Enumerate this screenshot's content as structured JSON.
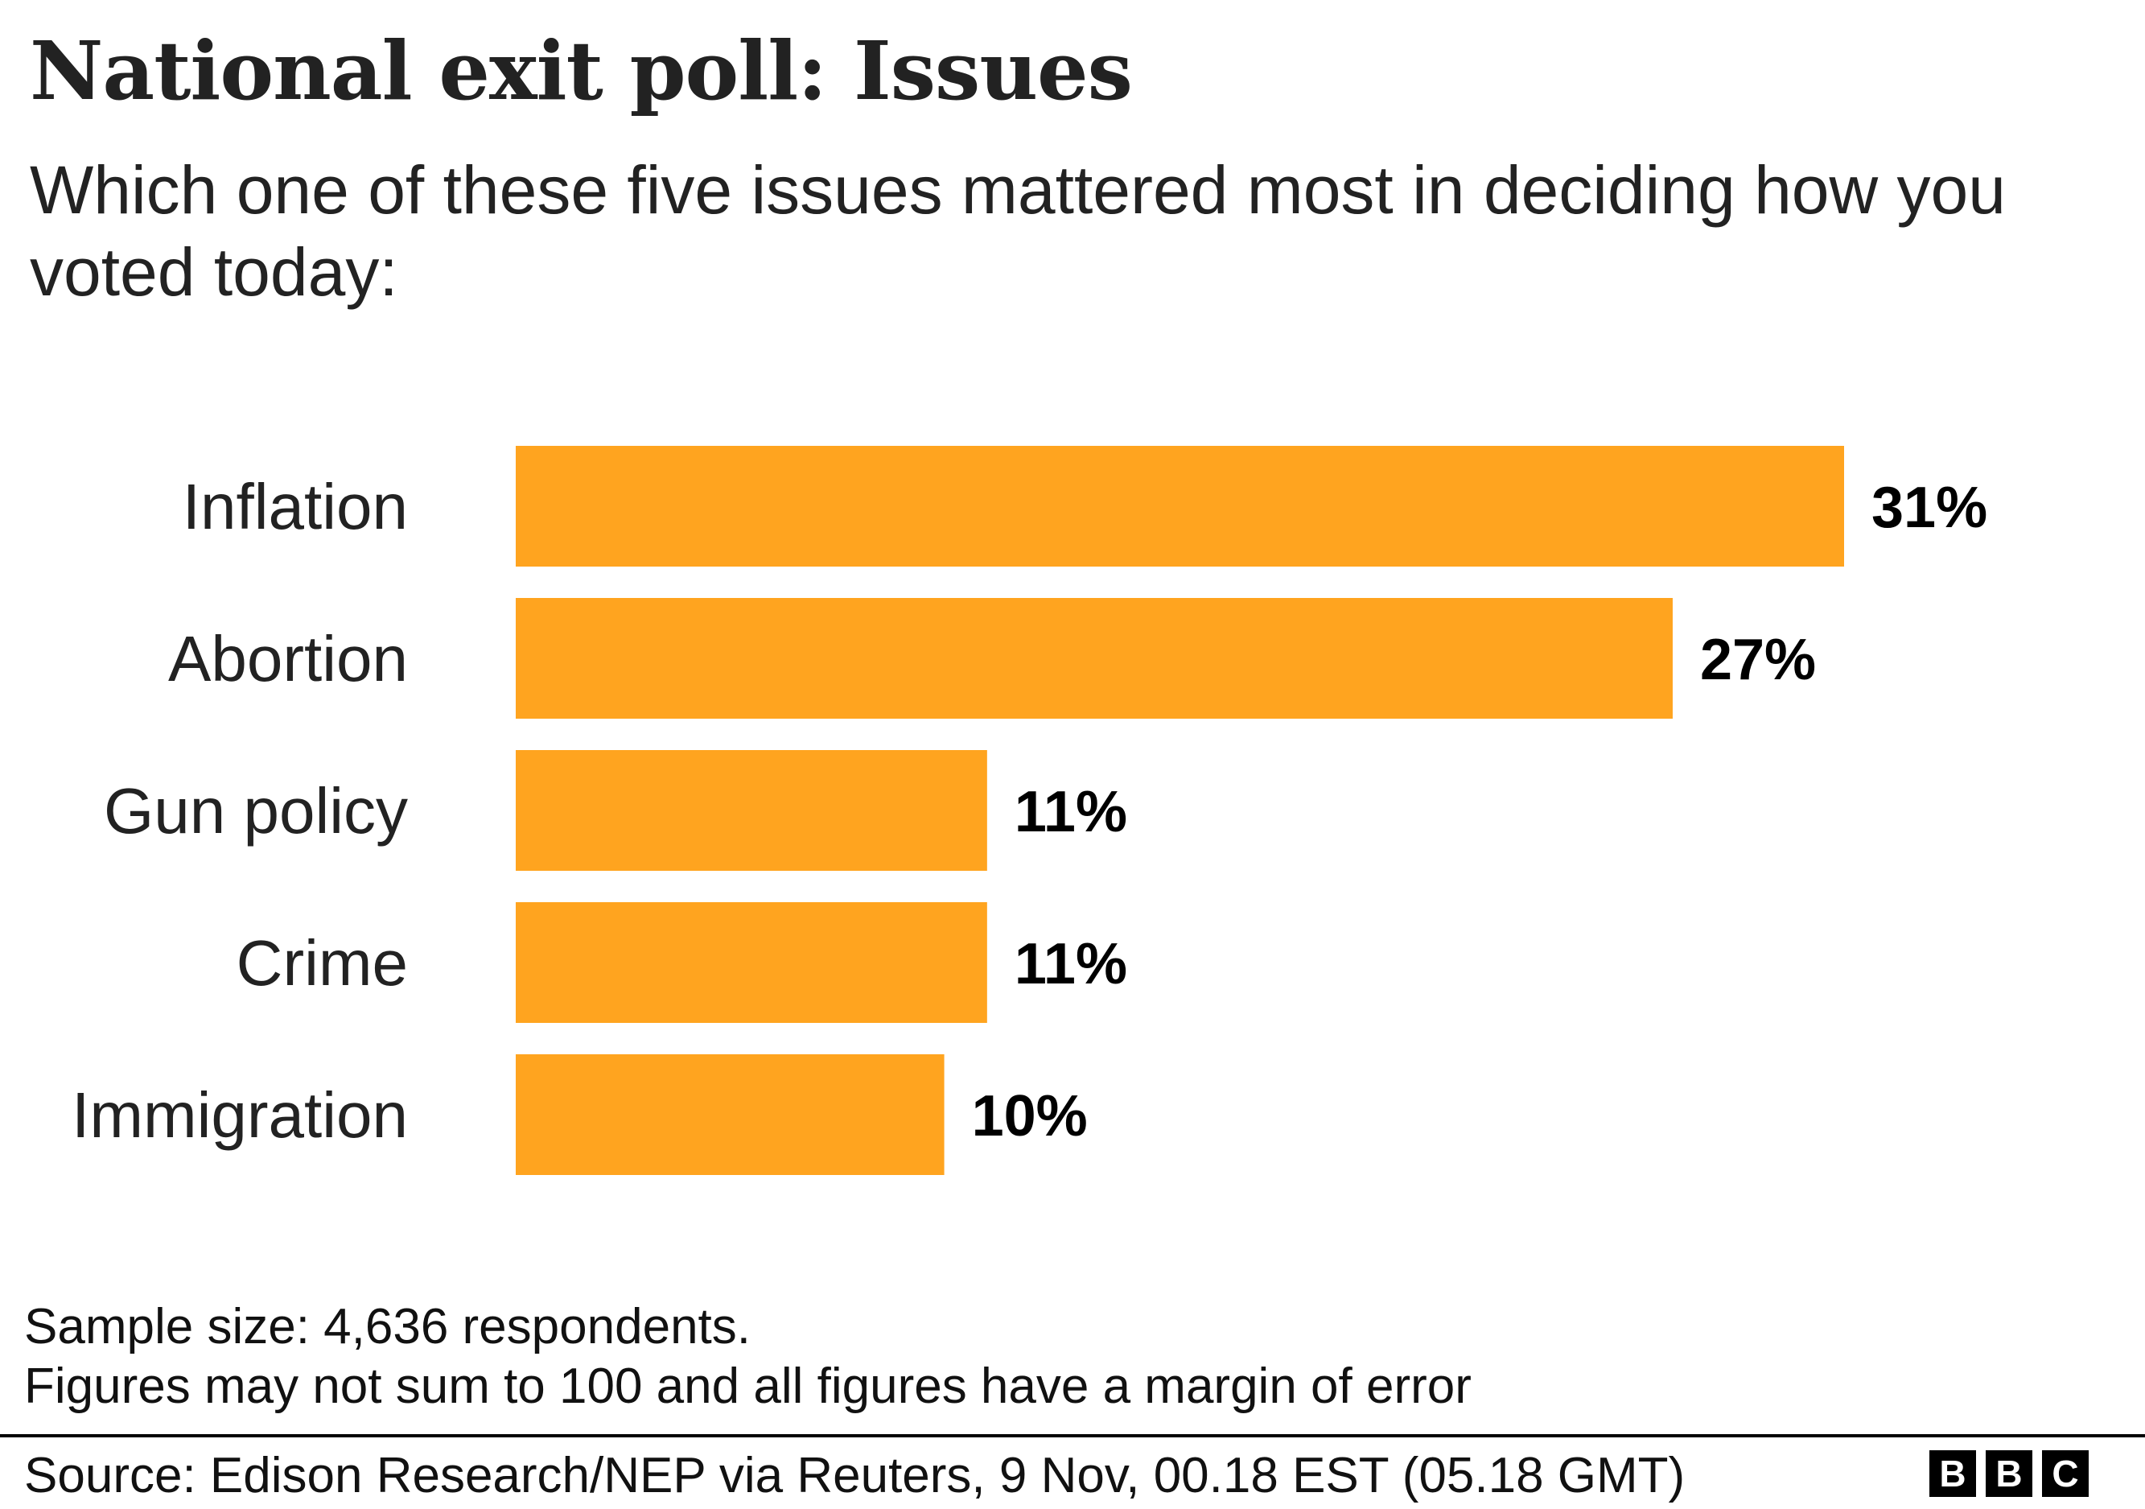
{
  "chart_data": {
    "type": "bar",
    "orientation": "horizontal",
    "title": "National exit poll: Issues",
    "subtitle": "Which one of these five issues mattered most in deciding how you voted today:",
    "categories": [
      "Inflation",
      "Abortion",
      "Gun policy",
      "Crime",
      "Immigration"
    ],
    "values": [
      31,
      27,
      11,
      11,
      10
    ],
    "value_labels": [
      "31%",
      "27%",
      "11%",
      "11%",
      "10%"
    ],
    "unit": "%",
    "grid": false,
    "bar_color": "#FFA41F"
  },
  "notes": [
    "Sample size: 4,636 respondents.",
    "Figures may not sum to 100 and all figures have a margin of error"
  ],
  "source": "Source: Edison Research/NEP via Reuters, 9 Nov, 00.18 EST (05.18 GMT)",
  "logo": [
    "B",
    "B",
    "C"
  ]
}
